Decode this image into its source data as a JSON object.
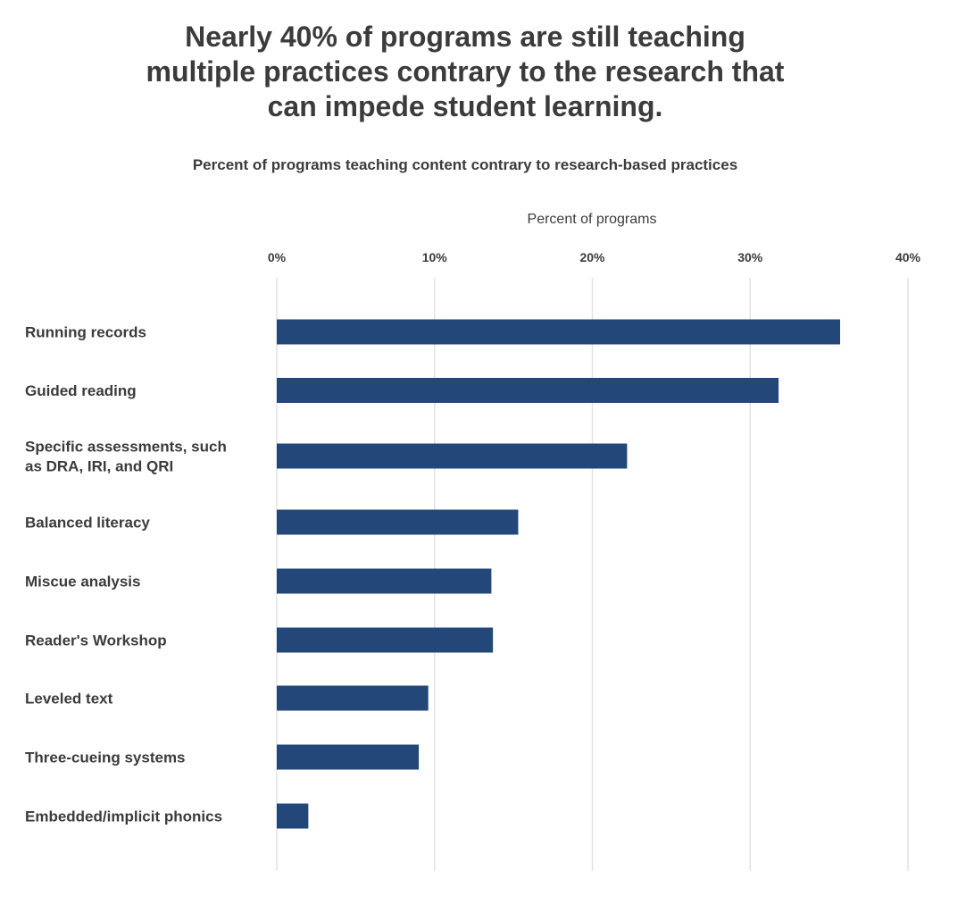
{
  "chart_data": {
    "type": "bar",
    "orientation": "horizontal",
    "title": "Nearly 40% of programs are still teaching multiple practices contrary to the research that can impede student learning.",
    "title_lines": [
      "Nearly 40% of programs are still teaching",
      "multiple practices contrary to the research that",
      "can impede student learning."
    ],
    "subtitle": "Percent of programs teaching content contrary to research-based practices",
    "xlabel": "Percent of programs",
    "ylabel": "",
    "xlim": [
      0,
      40
    ],
    "x_ticks": [
      0,
      10,
      20,
      30,
      40
    ],
    "x_tick_labels": [
      "0%",
      "10%",
      "20%",
      "30%",
      "40%"
    ],
    "grid": true,
    "bar_color": "#24477a",
    "categories": [
      [
        "Running records"
      ],
      [
        "Guided reading"
      ],
      [
        "Specific assessments, such",
        "as DRA, IRI, and QRI"
      ],
      [
        "Balanced literacy"
      ],
      [
        "Miscue analysis"
      ],
      [
        "Reader's Workshop"
      ],
      [
        "Leveled text"
      ],
      [
        "Three-cueing systems"
      ],
      [
        "Embedded/implicit phonics"
      ]
    ],
    "values": [
      35.7,
      31.8,
      22.2,
      15.3,
      13.6,
      13.7,
      9.6,
      9.0,
      2.0
    ]
  }
}
